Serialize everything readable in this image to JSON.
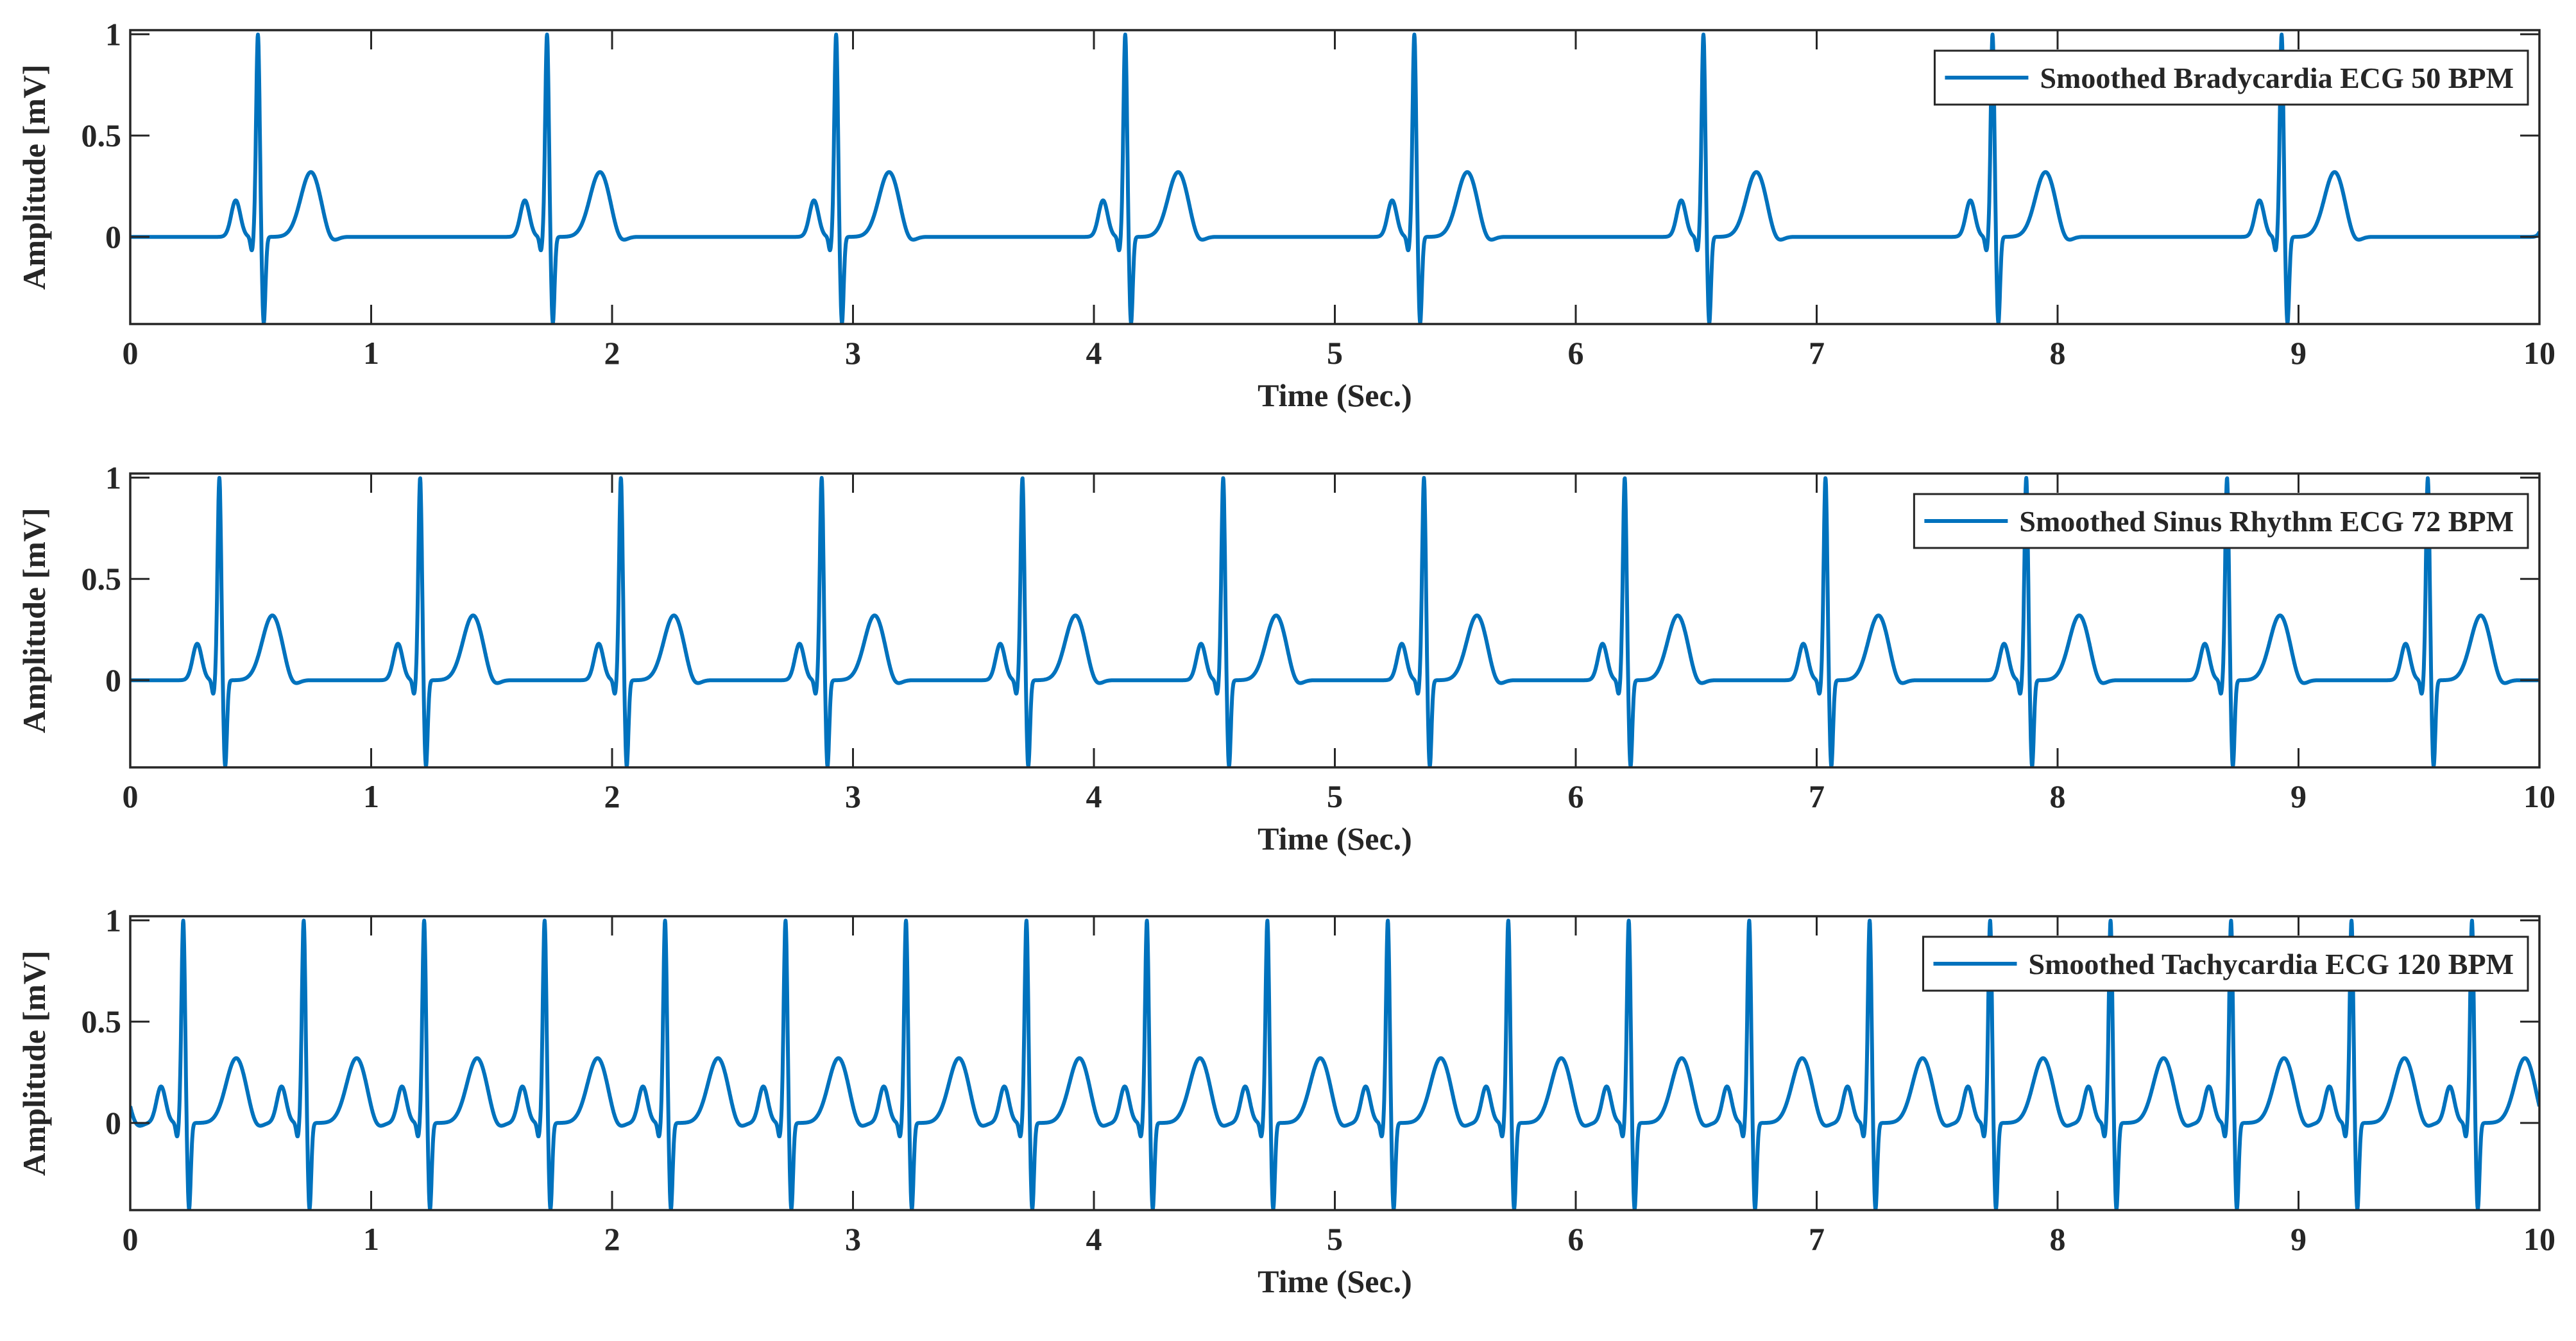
{
  "chart_data": [
    {
      "type": "line",
      "title": "",
      "xlabel": "Time (Sec.)",
      "ylabel": "Amplitude  [mV]",
      "xlim": [
        0,
        10
      ],
      "ylim": [
        -0.43,
        1.02
      ],
      "xticks": [
        0,
        1,
        2,
        3,
        4,
        5,
        6,
        7,
        8,
        9,
        10
      ],
      "yticks": [
        0,
        0.5,
        1
      ],
      "ytick_labels": [
        "0",
        "0.5",
        "1"
      ],
      "grid": false,
      "legend_position": "top-right",
      "series": [
        {
          "name": "Smoothed Bradycardia ECG 50 BPM",
          "color": "#0072BD",
          "bpm": 50,
          "first_r_peak_s": 0.53,
          "p_peak": 0.18,
          "r_peak": 1.0,
          "s_trough": -0.43,
          "t_peak": 0.32
        }
      ]
    },
    {
      "type": "line",
      "title": "",
      "xlabel": "Time (Sec.)",
      "ylabel": "Amplitude  [mV]",
      "xlim": [
        0,
        10
      ],
      "ylim": [
        -0.43,
        1.02
      ],
      "xticks": [
        0,
        1,
        2,
        3,
        4,
        5,
        6,
        7,
        8,
        9,
        10
      ],
      "yticks": [
        0,
        0.5,
        1
      ],
      "ytick_labels": [
        "0",
        "0.5",
        "1"
      ],
      "grid": false,
      "legend_position": "top-right",
      "series": [
        {
          "name": "Smoothed Sinus Rhythm ECG 72 BPM",
          "color": "#0072BD",
          "bpm": 72,
          "first_r_peak_s": 0.37,
          "p_peak": 0.18,
          "r_peak": 1.0,
          "s_trough": -0.43,
          "t_peak": 0.32
        }
      ]
    },
    {
      "type": "line",
      "title": "",
      "xlabel": "Time (Sec.)",
      "ylabel": "Amplitude  [mV]",
      "xlim": [
        0,
        10
      ],
      "ylim": [
        -0.43,
        1.02
      ],
      "xticks": [
        0,
        1,
        2,
        3,
        4,
        5,
        6,
        7,
        8,
        9,
        10
      ],
      "yticks": [
        0,
        0.5,
        1
      ],
      "ytick_labels": [
        "0",
        "0.5",
        "1"
      ],
      "grid": false,
      "legend_position": "top-right",
      "series": [
        {
          "name": "Smoothed Tachycardia ECG 120 BPM",
          "color": "#0072BD",
          "bpm": 120,
          "first_r_peak_s": 0.22,
          "p_peak": 0.18,
          "r_peak": 1.0,
          "s_trough": -0.43,
          "t_peak": 0.32
        }
      ]
    }
  ]
}
